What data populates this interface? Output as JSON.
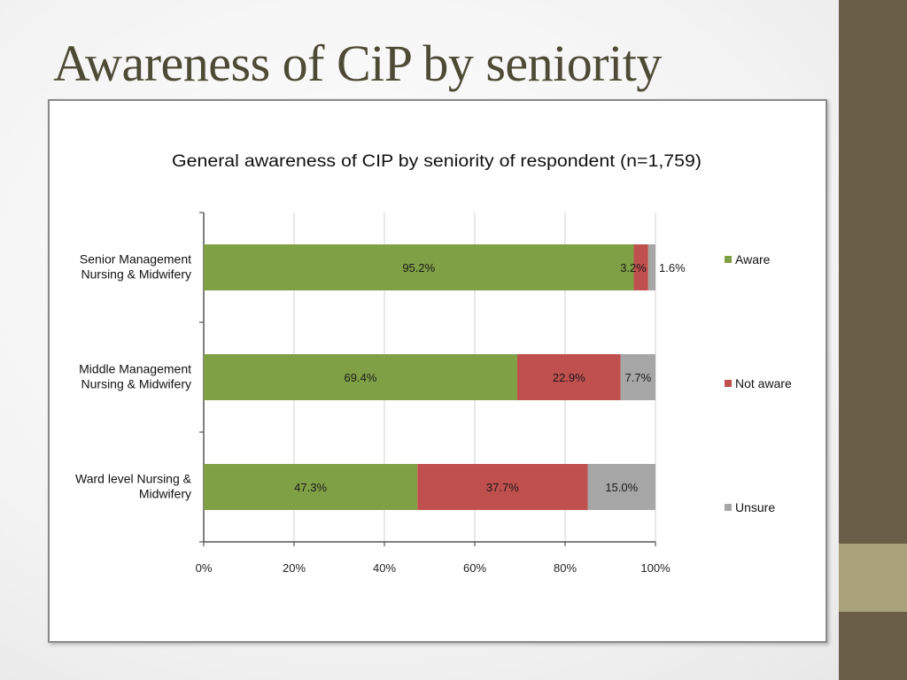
{
  "slide": {
    "title": "Awareness of CiP by seniority"
  },
  "chart_data": {
    "type": "bar",
    "orientation": "horizontal",
    "stacked": true,
    "title": "General awareness of CIP by seniority of respondent (n=1,759)",
    "categories": [
      [
        "Senior Management",
        "Nursing & Midwifery"
      ],
      [
        "Middle Management",
        "Nursing & Midwifery"
      ],
      [
        "Ward level  Nursing &",
        "Midwifery"
      ]
    ],
    "series": [
      {
        "name": "Aware",
        "color": "#80a045",
        "values": [
          95.2,
          69.4,
          47.3
        ],
        "labels": [
          "95.2%",
          "69.4%",
          "47.3%"
        ]
      },
      {
        "name": "Not aware",
        "color": "#c0504d",
        "values": [
          3.2,
          22.9,
          37.7
        ],
        "labels": [
          "3.2%",
          "22.9%",
          "37.7%"
        ]
      },
      {
        "name": "Unsure",
        "color": "#a6a6a6",
        "values": [
          1.6,
          7.7,
          15.0
        ],
        "labels": [
          "1.6%",
          "7.7%",
          "15.0%"
        ]
      }
    ],
    "xlim": [
      0,
      100
    ],
    "xticks": [
      "0%",
      "20%",
      "40%",
      "60%",
      "80%",
      "100%"
    ],
    "grid": true,
    "legend_position": "right",
    "xlabel": "",
    "ylabel": ""
  }
}
